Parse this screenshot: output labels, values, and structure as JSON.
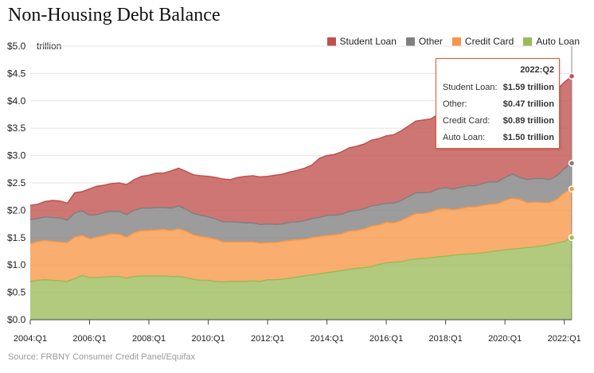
{
  "title": "Non-Housing Debt Balance",
  "unit_label": "trillion",
  "source": "Source: FRBNY Consumer Credit Panel/Equifax",
  "legend": [
    {
      "name": "Student Loan",
      "color": "#c0504d"
    },
    {
      "name": "Other",
      "color": "#808080"
    },
    {
      "name": "Credit Card",
      "color": "#f79646"
    },
    {
      "name": "Auto Loan",
      "color": "#9bbb59"
    }
  ],
  "tooltip": {
    "period": "2022:Q2",
    "rows": [
      {
        "label": "Student Loan:",
        "value": "$1.59 trillion"
      },
      {
        "label": "Other:",
        "value": "$0.47 trillion"
      },
      {
        "label": "Credit Card:",
        "value": "$0.89 trillion"
      },
      {
        "label": "Auto Loan:",
        "value": "$1.50 trillion"
      }
    ]
  },
  "chart_data": {
    "type": "area",
    "stacked": true,
    "title": "Non-Housing Debt Balance",
    "ylabel": "trillion",
    "xlabel": "",
    "ylim": [
      0,
      5
    ],
    "y_ticks": [
      "$0.0",
      "$0.5",
      "$1.0",
      "$1.5",
      "$2.0",
      "$2.5",
      "$3.0",
      "$3.5",
      "$4.0",
      "$4.5",
      "$5.0"
    ],
    "x_ticks": [
      "2004:Q1",
      "2006:Q1",
      "2008:Q1",
      "2010:Q1",
      "2012:Q1",
      "2014:Q1",
      "2016:Q1",
      "2018:Q1",
      "2020:Q1",
      "2022:Q1"
    ],
    "x_tick_index": [
      0,
      8,
      16,
      24,
      32,
      40,
      48,
      56,
      64,
      72
    ],
    "x_range": [
      "2004:Q1",
      "2022:Q2"
    ],
    "num_quarters": 74,
    "series": [
      {
        "name": "Auto Loan",
        "color": "#9bbb59",
        "values": [
          0.7,
          0.72,
          0.73,
          0.72,
          0.71,
          0.7,
          0.75,
          0.81,
          0.77,
          0.77,
          0.78,
          0.79,
          0.79,
          0.76,
          0.79,
          0.8,
          0.8,
          0.8,
          0.8,
          0.79,
          0.79,
          0.77,
          0.74,
          0.72,
          0.72,
          0.7,
          0.69,
          0.7,
          0.7,
          0.7,
          0.71,
          0.7,
          0.73,
          0.73,
          0.74,
          0.76,
          0.78,
          0.8,
          0.82,
          0.84,
          0.86,
          0.88,
          0.9,
          0.92,
          0.94,
          0.95,
          0.97,
          1.01,
          1.04,
          1.05,
          1.06,
          1.09,
          1.11,
          1.12,
          1.13,
          1.15,
          1.16,
          1.18,
          1.19,
          1.2,
          1.21,
          1.22,
          1.24,
          1.26,
          1.28,
          1.29,
          1.3,
          1.32,
          1.33,
          1.35,
          1.37,
          1.4,
          1.43,
          1.5
        ]
      },
      {
        "name": "Credit Card",
        "color": "#f79646",
        "values": [
          0.69,
          0.71,
          0.72,
          0.71,
          0.71,
          0.71,
          0.76,
          0.73,
          0.71,
          0.74,
          0.76,
          0.78,
          0.77,
          0.75,
          0.8,
          0.83,
          0.83,
          0.84,
          0.85,
          0.84,
          0.87,
          0.85,
          0.81,
          0.8,
          0.78,
          0.77,
          0.73,
          0.72,
          0.72,
          0.72,
          0.71,
          0.7,
          0.68,
          0.68,
          0.69,
          0.69,
          0.68,
          0.67,
          0.68,
          0.68,
          0.68,
          0.67,
          0.67,
          0.7,
          0.69,
          0.71,
          0.74,
          0.72,
          0.74,
          0.72,
          0.75,
          0.79,
          0.83,
          0.82,
          0.84,
          0.87,
          0.87,
          0.83,
          0.84,
          0.86,
          0.85,
          0.87,
          0.87,
          0.86,
          0.9,
          0.93,
          0.9,
          0.82,
          0.82,
          0.79,
          0.77,
          0.8,
          0.89,
          0.89
        ]
      },
      {
        "name": "Other",
        "color": "#808080",
        "values": [
          0.44,
          0.42,
          0.43,
          0.44,
          0.44,
          0.41,
          0.44,
          0.45,
          0.43,
          0.41,
          0.42,
          0.41,
          0.42,
          0.41,
          0.41,
          0.41,
          0.41,
          0.41,
          0.4,
          0.41,
          0.42,
          0.4,
          0.39,
          0.39,
          0.38,
          0.37,
          0.37,
          0.37,
          0.36,
          0.35,
          0.35,
          0.34,
          0.34,
          0.33,
          0.32,
          0.33,
          0.33,
          0.34,
          0.35,
          0.35,
          0.37,
          0.36,
          0.36,
          0.36,
          0.37,
          0.37,
          0.37,
          0.37,
          0.35,
          0.36,
          0.37,
          0.37,
          0.38,
          0.38,
          0.36,
          0.37,
          0.38,
          0.38,
          0.39,
          0.39,
          0.39,
          0.4,
          0.41,
          0.4,
          0.42,
          0.44,
          0.4,
          0.42,
          0.43,
          0.44,
          0.42,
          0.43,
          0.44,
          0.47
        ]
      },
      {
        "name": "Student Loan",
        "color": "#c0504d",
        "values": [
          0.26,
          0.26,
          0.28,
          0.31,
          0.31,
          0.31,
          0.37,
          0.35,
          0.48,
          0.52,
          0.5,
          0.51,
          0.52,
          0.55,
          0.56,
          0.58,
          0.6,
          0.63,
          0.63,
          0.68,
          0.69,
          0.69,
          0.71,
          0.72,
          0.74,
          0.76,
          0.78,
          0.77,
          0.82,
          0.85,
          0.86,
          0.87,
          0.87,
          0.9,
          0.91,
          0.92,
          0.94,
          0.96,
          0.98,
          1.08,
          1.09,
          1.11,
          1.14,
          1.16,
          1.17,
          1.18,
          1.2,
          1.21,
          1.23,
          1.25,
          1.27,
          1.29,
          1.31,
          1.33,
          1.34,
          1.36,
          1.37,
          1.38,
          1.39,
          1.41,
          1.42,
          1.44,
          1.45,
          1.48,
          1.5,
          1.51,
          1.53,
          1.54,
          1.55,
          1.56,
          1.57,
          1.57,
          1.58,
          1.59
        ]
      }
    ]
  }
}
